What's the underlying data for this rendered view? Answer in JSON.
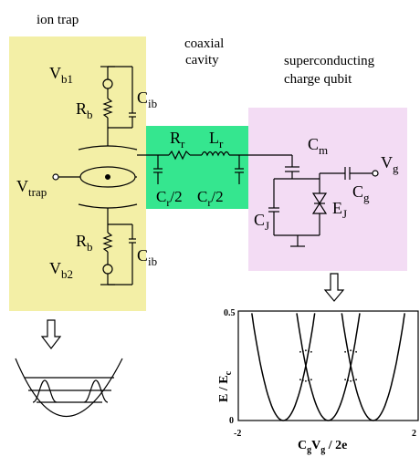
{
  "titles": {
    "ion_trap": "ion trap",
    "coaxial_cavity_line1": "coaxial",
    "coaxial_cavity_line2": "cavity",
    "qubit_line1": "superconducting",
    "qubit_line2": "charge qubit"
  },
  "ion_trap_labels": {
    "vb1": {
      "main": "V",
      "sub": "b1"
    },
    "rb_top": {
      "main": "R",
      "sub": "b"
    },
    "cib_top": {
      "main": "C",
      "sub": "ib"
    },
    "vtrap": {
      "main": "V",
      "sub": "trap"
    },
    "rb_bottom": {
      "main": "R",
      "sub": "b"
    },
    "cib_bottom": {
      "main": "C",
      "sub": "ib"
    },
    "vb2": {
      "main": "V",
      "sub": "b2"
    }
  },
  "cavity_labels": {
    "rr": {
      "main": "R",
      "sub": "r"
    },
    "lr": {
      "main": "L",
      "sub": "r"
    },
    "cr2_left": {
      "main": "C",
      "sub": "r",
      "suffix": "/2"
    },
    "cr2_right": {
      "main": "C",
      "sub": "r",
      "suffix": "/2"
    }
  },
  "qubit_labels": {
    "cm": {
      "main": "C",
      "sub": "m"
    },
    "vg": {
      "main": "V",
      "sub": "g"
    },
    "cg": {
      "main": "C",
      "sub": "g"
    },
    "cj": {
      "main": "C",
      "sub": "J"
    },
    "ej": {
      "main": "E",
      "sub": "J"
    }
  },
  "colors": {
    "ion_trap_bg": "#f3efa6",
    "cavity_bg": "#35e68f",
    "qubit_bg": "#f3dcf4",
    "line": "#000000"
  },
  "chart_data": {
    "type": "line",
    "title": "",
    "xlabel": "",
    "ylabel": "",
    "x_tick_labels": [
      "-2",
      "2"
    ],
    "y_tick_labels": [
      "0",
      "0.5"
    ],
    "xlim": [
      -2,
      2
    ],
    "ylim": [
      0,
      0.5
    ],
    "grid": false,
    "series": [
      {
        "type": "parabola",
        "vertex_x": -1,
        "curvature": 1
      },
      {
        "type": "parabola",
        "vertex_x": 0,
        "curvature": 1
      },
      {
        "type": "parabola",
        "vertex_x": 1,
        "curvature": 1
      }
    ],
    "axis_label_parts": {
      "x": [
        {
          "text": "C",
          "sub": false
        },
        {
          "text": "g",
          "sub": true
        },
        {
          "text": "V",
          "sub": false
        },
        {
          "text": "g",
          "sub": true
        },
        {
          "text": " / 2e",
          "sub": false
        }
      ],
      "y": [
        {
          "text": "E / E",
          "sub": false
        },
        {
          "text": "c",
          "sub": true
        }
      ]
    }
  }
}
